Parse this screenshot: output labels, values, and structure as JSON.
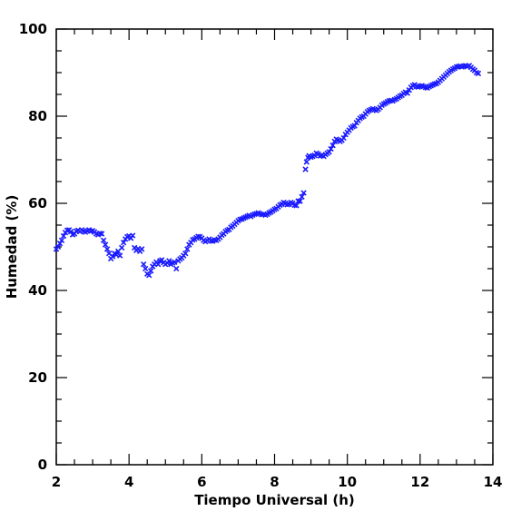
{
  "chart_data": {
    "type": "scatter",
    "title": "",
    "xlabel": "Tiempo Universal (h)",
    "ylabel": "Humedad (%)",
    "xlim": [
      2,
      14
    ],
    "ylim": [
      0,
      100
    ],
    "xticks": [
      2,
      4,
      6,
      8,
      10,
      12,
      14
    ],
    "yticks": [
      0,
      20,
      40,
      60,
      80,
      100
    ],
    "xtick_labels": [
      "2",
      "4",
      "6",
      "8",
      "10",
      "12",
      "14"
    ],
    "ytick_labels": [
      "0",
      "20",
      "40",
      "60",
      "80",
      "100"
    ],
    "grid": false,
    "legend": "none",
    "marker": "x",
    "marker_color": "#1a1aff",
    "series": [
      {
        "points": [
          [
            2.0,
            49.5
          ],
          [
            2.05,
            50.0
          ],
          [
            2.1,
            50.8
          ],
          [
            2.15,
            51.5
          ],
          [
            2.2,
            52.5
          ],
          [
            2.25,
            53.3
          ],
          [
            2.3,
            53.8
          ],
          [
            2.35,
            53.9
          ],
          [
            2.4,
            53.5
          ],
          [
            2.45,
            52.8
          ],
          [
            2.5,
            53.0
          ],
          [
            2.55,
            53.6
          ],
          [
            2.6,
            53.8
          ],
          [
            2.65,
            53.5
          ],
          [
            2.7,
            53.9
          ],
          [
            2.75,
            53.6
          ],
          [
            2.8,
            53.4
          ],
          [
            2.85,
            53.7
          ],
          [
            2.9,
            53.9
          ],
          [
            2.95,
            53.6
          ],
          [
            3.0,
            53.7
          ],
          [
            3.05,
            53.4
          ],
          [
            3.1,
            53.0
          ],
          [
            3.15,
            52.8
          ],
          [
            3.2,
            53.1
          ],
          [
            3.25,
            53.0
          ],
          [
            3.3,
            51.5
          ],
          [
            3.35,
            50.5
          ],
          [
            3.4,
            49.5
          ],
          [
            3.45,
            48.5
          ],
          [
            3.5,
            47.3
          ],
          [
            3.55,
            47.8
          ],
          [
            3.6,
            48.5
          ],
          [
            3.65,
            48.2
          ],
          [
            3.7,
            49.0
          ],
          [
            3.75,
            48.0
          ],
          [
            3.8,
            49.8
          ],
          [
            3.85,
            51.0
          ],
          [
            3.9,
            51.8
          ],
          [
            3.95,
            52.3
          ],
          [
            4.0,
            52.5
          ],
          [
            4.05,
            52.0
          ],
          [
            4.1,
            52.6
          ],
          [
            4.15,
            49.8
          ],
          [
            4.2,
            49.2
          ],
          [
            4.25,
            49.6
          ],
          [
            4.3,
            49.0
          ],
          [
            4.35,
            49.5
          ],
          [
            4.4,
            46.0
          ],
          [
            4.45,
            45.0
          ],
          [
            4.5,
            43.8
          ],
          [
            4.55,
            43.5
          ],
          [
            4.6,
            44.5
          ],
          [
            4.65,
            45.5
          ],
          [
            4.7,
            46.0
          ],
          [
            4.75,
            46.5
          ],
          [
            4.8,
            46.0
          ],
          [
            4.85,
            46.8
          ],
          [
            4.9,
            47.0
          ],
          [
            4.95,
            46.4
          ],
          [
            5.0,
            46.0
          ],
          [
            5.05,
            46.3
          ],
          [
            5.1,
            46.8
          ],
          [
            5.15,
            46.0
          ],
          [
            5.2,
            46.3
          ],
          [
            5.25,
            46.5
          ],
          [
            5.3,
            45.0
          ],
          [
            5.35,
            46.8
          ],
          [
            5.4,
            47.2
          ],
          [
            5.45,
            47.5
          ],
          [
            5.5,
            48.0
          ],
          [
            5.55,
            48.5
          ],
          [
            5.6,
            49.5
          ],
          [
            5.65,
            50.5
          ],
          [
            5.7,
            51.0
          ],
          [
            5.75,
            51.6
          ],
          [
            5.8,
            51.8
          ],
          [
            5.85,
            52.1
          ],
          [
            5.9,
            52.4
          ],
          [
            5.95,
            52.3
          ],
          [
            6.0,
            52.0
          ],
          [
            6.05,
            51.5
          ],
          [
            6.1,
            51.2
          ],
          [
            6.15,
            51.5
          ],
          [
            6.2,
            51.8
          ],
          [
            6.25,
            51.4
          ],
          [
            6.3,
            51.3
          ],
          [
            6.35,
            51.6
          ],
          [
            6.4,
            51.5
          ],
          [
            6.45,
            51.8
          ],
          [
            6.5,
            52.2
          ],
          [
            6.55,
            52.7
          ],
          [
            6.6,
            53.0
          ],
          [
            6.65,
            53.5
          ],
          [
            6.7,
            53.8
          ],
          [
            6.75,
            54.0
          ],
          [
            6.8,
            54.5
          ],
          [
            6.85,
            54.8
          ],
          [
            6.9,
            55.2
          ],
          [
            6.95,
            55.6
          ],
          [
            7.0,
            56.0
          ],
          [
            7.05,
            56.3
          ],
          [
            7.1,
            56.4
          ],
          [
            7.15,
            56.6
          ],
          [
            7.2,
            56.8
          ],
          [
            7.25,
            57.0
          ],
          [
            7.3,
            57.2
          ],
          [
            7.35,
            57.0
          ],
          [
            7.4,
            57.3
          ],
          [
            7.45,
            57.5
          ],
          [
            7.5,
            57.6
          ],
          [
            7.55,
            57.8
          ],
          [
            7.6,
            57.6
          ],
          [
            7.65,
            57.4
          ],
          [
            7.7,
            57.5
          ],
          [
            7.75,
            57.3
          ],
          [
            7.8,
            57.5
          ],
          [
            7.85,
            57.8
          ],
          [
            7.9,
            58.0
          ],
          [
            7.95,
            58.3
          ],
          [
            8.0,
            58.6
          ],
          [
            8.05,
            58.8
          ],
          [
            8.1,
            59.2
          ],
          [
            8.15,
            59.6
          ],
          [
            8.2,
            59.8
          ],
          [
            8.25,
            60.2
          ],
          [
            8.3,
            60.0
          ],
          [
            8.35,
            59.7
          ],
          [
            8.4,
            59.8
          ],
          [
            8.45,
            60.2
          ],
          [
            8.5,
            60.0
          ],
          [
            8.55,
            59.6
          ],
          [
            8.6,
            59.5
          ],
          [
            8.65,
            60.5
          ],
          [
            8.7,
            60.5
          ],
          [
            8.75,
            61.5
          ],
          [
            8.8,
            62.4
          ],
          [
            8.85,
            67.8
          ],
          [
            8.88,
            69.5
          ],
          [
            8.92,
            70.5
          ],
          [
            8.95,
            70.9
          ],
          [
            9.0,
            70.6
          ],
          [
            9.05,
            70.8
          ],
          [
            9.1,
            71.0
          ],
          [
            9.15,
            71.5
          ],
          [
            9.2,
            71.3
          ],
          [
            9.25,
            70.9
          ],
          [
            9.3,
            71.0
          ],
          [
            9.35,
            70.8
          ],
          [
            9.4,
            71.2
          ],
          [
            9.45,
            71.5
          ],
          [
            9.5,
            71.8
          ],
          [
            9.55,
            72.5
          ],
          [
            9.6,
            73.3
          ],
          [
            9.65,
            74.2
          ],
          [
            9.7,
            74.7
          ],
          [
            9.75,
            74.5
          ],
          [
            9.8,
            74.2
          ],
          [
            9.85,
            74.5
          ],
          [
            9.9,
            75.0
          ],
          [
            9.95,
            75.8
          ],
          [
            10.0,
            76.3
          ],
          [
            10.05,
            76.8
          ],
          [
            10.1,
            77.3
          ],
          [
            10.15,
            77.6
          ],
          [
            10.2,
            77.8
          ],
          [
            10.25,
            78.5
          ],
          [
            10.3,
            79.0
          ],
          [
            10.35,
            79.5
          ],
          [
            10.4,
            79.8
          ],
          [
            10.45,
            80.0
          ],
          [
            10.5,
            80.5
          ],
          [
            10.55,
            81.0
          ],
          [
            10.6,
            81.3
          ],
          [
            10.65,
            81.5
          ],
          [
            10.7,
            81.7
          ],
          [
            10.75,
            81.5
          ],
          [
            10.8,
            81.3
          ],
          [
            10.85,
            81.6
          ],
          [
            10.9,
            82.0
          ],
          [
            10.95,
            82.5
          ],
          [
            11.0,
            82.8
          ],
          [
            11.05,
            83.0
          ],
          [
            11.1,
            83.3
          ],
          [
            11.15,
            83.5
          ],
          [
            11.2,
            83.6
          ],
          [
            11.25,
            83.5
          ],
          [
            11.3,
            83.8
          ],
          [
            11.35,
            84.0
          ],
          [
            11.4,
            84.3
          ],
          [
            11.45,
            84.6
          ],
          [
            11.5,
            84.8
          ],
          [
            11.55,
            85.2
          ],
          [
            11.6,
            85.5
          ],
          [
            11.65,
            85.3
          ],
          [
            11.7,
            86.0
          ],
          [
            11.75,
            86.6
          ],
          [
            11.8,
            87.0
          ],
          [
            11.85,
            87.2
          ],
          [
            11.9,
            86.8
          ],
          [
            11.95,
            86.7
          ],
          [
            12.0,
            86.9
          ],
          [
            12.05,
            87.0
          ],
          [
            12.1,
            86.8
          ],
          [
            12.15,
            86.6
          ],
          [
            12.2,
            86.5
          ],
          [
            12.25,
            86.8
          ],
          [
            12.3,
            87.0
          ],
          [
            12.35,
            87.2
          ],
          [
            12.4,
            87.4
          ],
          [
            12.45,
            87.5
          ],
          [
            12.5,
            87.8
          ],
          [
            12.55,
            88.2
          ],
          [
            12.6,
            88.6
          ],
          [
            12.65,
            89.0
          ],
          [
            12.7,
            89.4
          ],
          [
            12.75,
            89.8
          ],
          [
            12.8,
            90.2
          ],
          [
            12.85,
            90.5
          ],
          [
            12.9,
            90.8
          ],
          [
            12.95,
            91.0
          ],
          [
            13.0,
            91.3
          ],
          [
            13.05,
            91.4
          ],
          [
            13.1,
            91.5
          ],
          [
            13.15,
            91.3
          ],
          [
            13.2,
            91.5
          ],
          [
            13.25,
            91.6
          ],
          [
            13.3,
            91.4
          ],
          [
            13.35,
            91.6
          ],
          [
            13.4,
            91.2
          ],
          [
            13.45,
            90.8
          ],
          [
            13.5,
            90.5
          ],
          [
            13.55,
            90.0
          ],
          [
            13.6,
            89.8
          ]
        ]
      }
    ]
  }
}
